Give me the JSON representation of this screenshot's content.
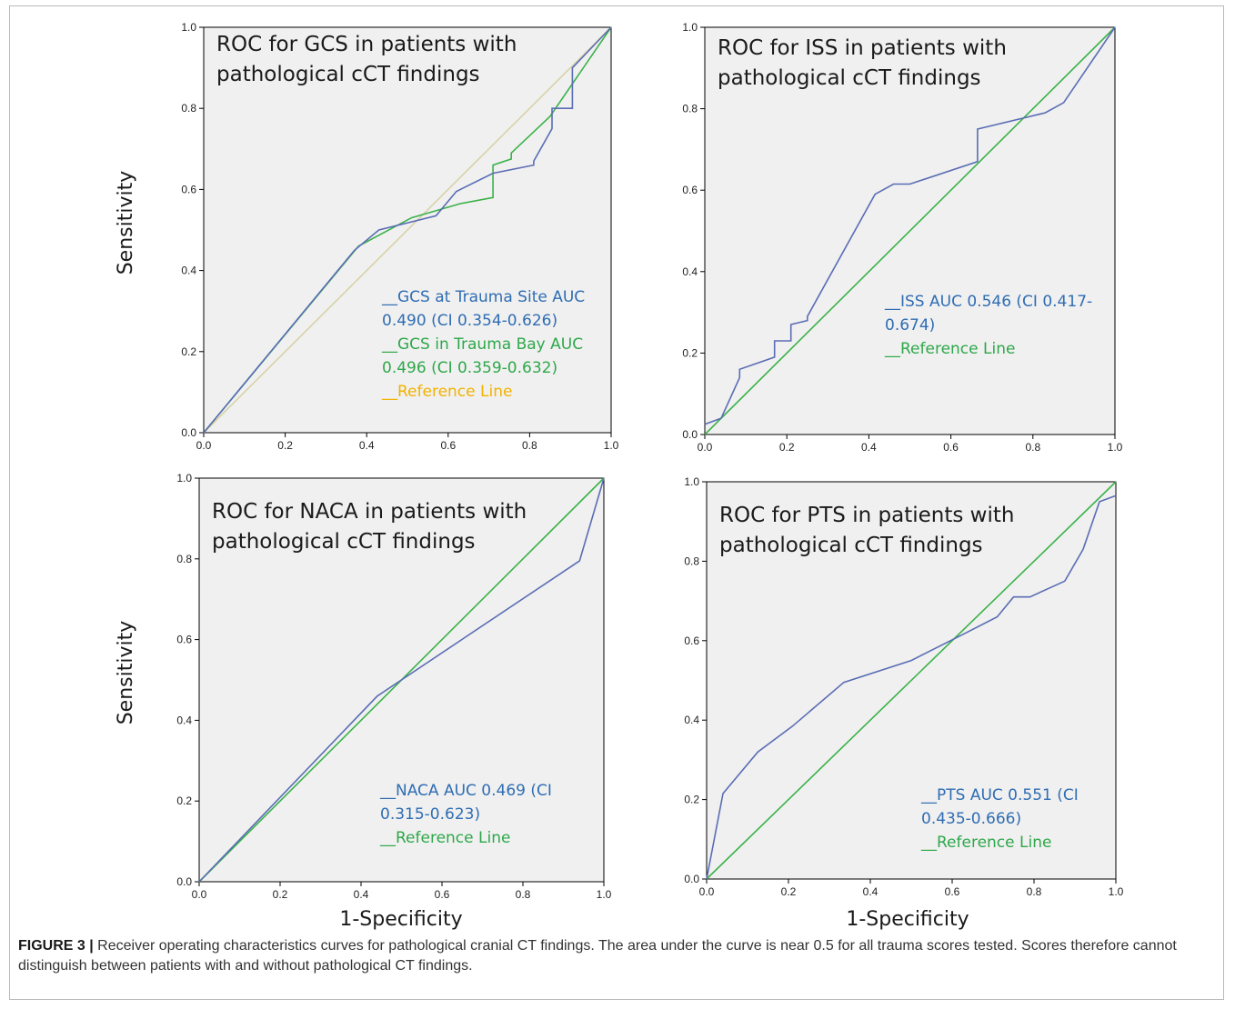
{
  "figure": {
    "label": "FIGURE 3 |",
    "caption": "Receiver operating characteristics curves for pathological cranial CT findings. The area under the curve is near 0.5 for all trauma scores tested. Scores therefore cannot distinguish between patients with and without pathological CT findings."
  },
  "colors": {
    "blue": "#5a6db4",
    "green": "#3bb24a",
    "tan": "#d8d2a8",
    "legend_blue": "#2f6db3",
    "legend_green": "#2ea84a",
    "legend_orange": "#f2b200",
    "panel_bg": "#f0f0f0"
  },
  "chart_data": [
    {
      "type": "line",
      "title": [
        "ROC for GCS in patients with",
        "pathological cCT findings"
      ],
      "xlabel": "",
      "ylabel": "Sensitivity",
      "xlim": [
        0,
        1
      ],
      "ylim": [
        0,
        1
      ],
      "x_ticks": [
        "0.0",
        "0.2",
        "0.4",
        "0.6",
        "0.8",
        "1.0"
      ],
      "y_ticks": [
        "0.0",
        "0.2",
        "0.4",
        "0.6",
        "0.8",
        "1.0"
      ],
      "series": [
        {
          "key": "ref",
          "color": "#d8d2a8",
          "points": [
            [
              0,
              0
            ],
            [
              1,
              1
            ]
          ]
        },
        {
          "key": "trauma_bay",
          "color": "#3bb24a",
          "points": [
            [
              0,
              0
            ],
            [
              0.38,
              0.46
            ],
            [
              0.51,
              0.53
            ],
            [
              0.63,
              0.565
            ],
            [
              0.71,
              0.58
            ],
            [
              0.71,
              0.66
            ],
            [
              0.755,
              0.675
            ],
            [
              0.755,
              0.69
            ],
            [
              0.85,
              0.78
            ],
            [
              1,
              1
            ]
          ]
        },
        {
          "key": "trauma_site",
          "color": "#5a6db4",
          "points": [
            [
              0,
              0
            ],
            [
              0.37,
              0.45
            ],
            [
              0.43,
              0.5
            ],
            [
              0.57,
              0.535
            ],
            [
              0.62,
              0.595
            ],
            [
              0.71,
              0.64
            ],
            [
              0.81,
              0.66
            ],
            [
              0.81,
              0.67
            ],
            [
              0.855,
              0.75
            ],
            [
              0.855,
              0.8
            ],
            [
              0.905,
              0.8
            ],
            [
              0.905,
              0.9
            ],
            [
              1,
              1
            ]
          ]
        }
      ],
      "legend": [
        {
          "text": "__GCS at  Trauma Site AUC",
          "color": "#2f6db3"
        },
        {
          "text": "0.490 (CI 0.354-0.626)",
          "color": "#2f6db3"
        },
        {
          "text": "__GCS in Trauma Bay AUC",
          "color": "#2ea84a"
        },
        {
          "text": "0.496 (CI 0.359-0.632)",
          "color": "#2ea84a"
        },
        {
          "text": "__Reference Line",
          "color": "#f2b200"
        }
      ]
    },
    {
      "type": "line",
      "title": [
        "ROC for ISS in patients with",
        "pathological cCT findings"
      ],
      "xlabel": "",
      "ylabel": "",
      "xlim": [
        0,
        1
      ],
      "ylim": [
        0,
        1
      ],
      "x_ticks": [
        "0.0",
        "0.2",
        "0.4",
        "0.6",
        "0.8",
        "1.0"
      ],
      "y_ticks": [
        "0.0",
        "0.2",
        "0.4",
        "0.6",
        "0.8",
        "1.0"
      ],
      "series": [
        {
          "key": "ref",
          "color": "#3bb24a",
          "points": [
            [
              0,
              0
            ],
            [
              1,
              1
            ]
          ]
        },
        {
          "key": "iss",
          "color": "#5a6db4",
          "points": [
            [
              0,
              0.025
            ],
            [
              0.04,
              0.04
            ],
            [
              0.085,
              0.14
            ],
            [
              0.085,
              0.16
            ],
            [
              0.17,
              0.19
            ],
            [
              0.17,
              0.23
            ],
            [
              0.21,
              0.23
            ],
            [
              0.21,
              0.27
            ],
            [
              0.25,
              0.28
            ],
            [
              0.25,
              0.29
            ],
            [
              0.415,
              0.59
            ],
            [
              0.46,
              0.615
            ],
            [
              0.5,
              0.615
            ],
            [
              0.665,
              0.67
            ],
            [
              0.665,
              0.75
            ],
            [
              0.83,
              0.79
            ],
            [
              0.875,
              0.815
            ],
            [
              1,
              1
            ]
          ]
        }
      ],
      "legend": [
        {
          "text": "__ISS AUC 0.546 (CI 0.417-",
          "color": "#2f6db3"
        },
        {
          "text": "0.674)",
          "color": "#2f6db3"
        },
        {
          "text": "__Reference Line",
          "color": "#2ea84a"
        }
      ]
    },
    {
      "type": "line",
      "title": [
        "ROC for NACA in patients with",
        "pathological cCT findings"
      ],
      "xlabel": "1-Specificity",
      "ylabel": "Sensitivity",
      "xlim": [
        0,
        1
      ],
      "ylim": [
        0,
        1
      ],
      "x_ticks": [
        "0.0",
        "0.2",
        "0.4",
        "0.6",
        "0.8",
        "1.0"
      ],
      "y_ticks": [
        "0.0",
        "0.2",
        "0.4",
        "0.6",
        "0.8",
        "1.0"
      ],
      "series": [
        {
          "key": "ref",
          "color": "#3bb24a",
          "points": [
            [
              0,
              0
            ],
            [
              1,
              1
            ]
          ]
        },
        {
          "key": "naca",
          "color": "#5a6db4",
          "points": [
            [
              0,
              0
            ],
            [
              0.44,
              0.46
            ],
            [
              0.94,
              0.795
            ],
            [
              1,
              1
            ]
          ]
        }
      ],
      "legend": [
        {
          "text": "__NACA AUC 0.469 (CI",
          "color": "#2f6db3"
        },
        {
          "text": "0.315-0.623)",
          "color": "#2f6db3"
        },
        {
          "text": "__Reference Line",
          "color": "#2ea84a"
        }
      ]
    },
    {
      "type": "line",
      "title": [
        "ROC for PTS in patients with",
        "pathological cCT findings"
      ],
      "xlabel": "1-Specificity",
      "ylabel": "",
      "xlim": [
        0,
        1
      ],
      "ylim": [
        0,
        1
      ],
      "x_ticks": [
        "0.0",
        "0.2",
        "0.4",
        "0.6",
        "0.8",
        "1.0"
      ],
      "y_ticks": [
        "0.0",
        "0.2",
        "0.4",
        "0.6",
        "0.8",
        "1.0"
      ],
      "series": [
        {
          "key": "ref",
          "color": "#3bb24a",
          "points": [
            [
              0,
              0
            ],
            [
              1,
              1
            ]
          ]
        },
        {
          "key": "pts",
          "color": "#5a6db4",
          "points": [
            [
              0,
              0
            ],
            [
              0.04,
              0.215
            ],
            [
              0.125,
              0.32
            ],
            [
              0.21,
              0.385
            ],
            [
              0.335,
              0.495
            ],
            [
              0.5,
              0.55
            ],
            [
              0.625,
              0.615
            ],
            [
              0.71,
              0.66
            ],
            [
              0.75,
              0.71
            ],
            [
              0.79,
              0.71
            ],
            [
              0.875,
              0.75
            ],
            [
              0.92,
              0.83
            ],
            [
              0.96,
              0.95
            ],
            [
              1,
              0.965
            ]
          ]
        }
      ],
      "legend": [
        {
          "text": "__PTS AUC 0.551 (CI",
          "color": "#2f6db3"
        },
        {
          "text": "0.435-0.666)",
          "color": "#2f6db3"
        },
        {
          "text": "__Reference Line",
          "color": "#2ea84a"
        }
      ]
    }
  ]
}
